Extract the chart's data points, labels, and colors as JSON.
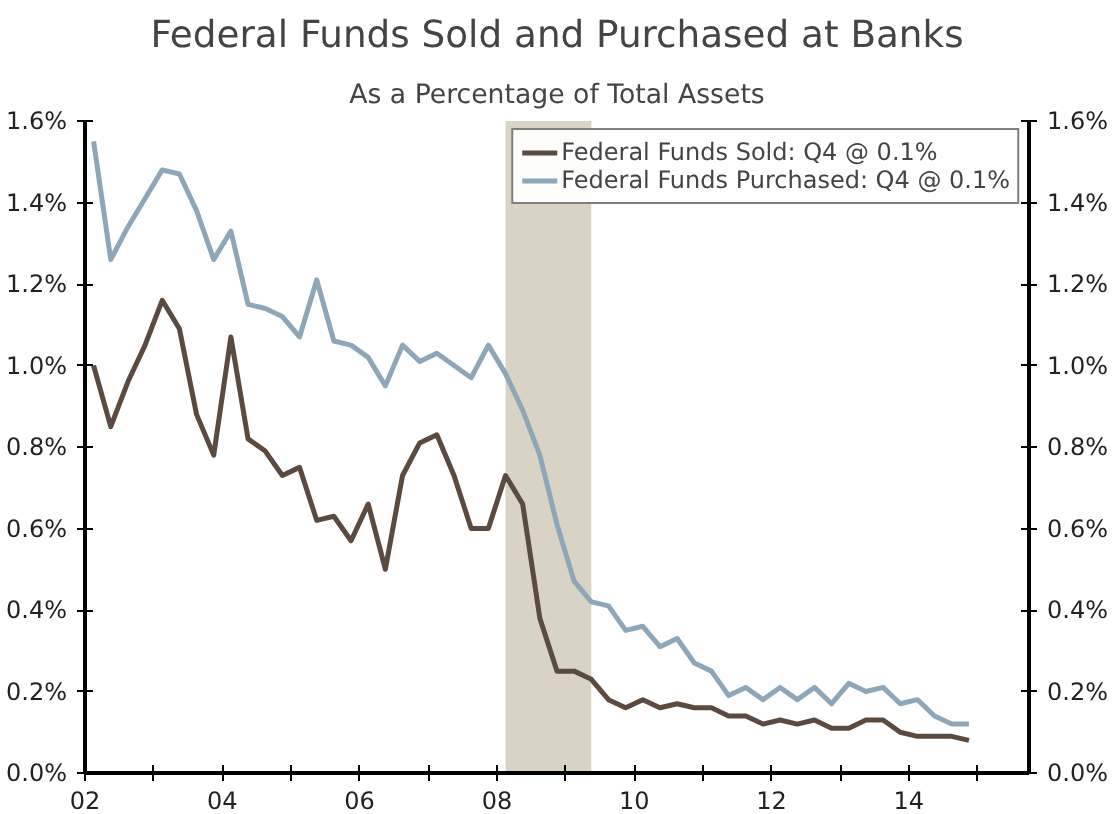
{
  "chart_data": {
    "type": "line",
    "title": "Federal Funds Sold and Purchased at Banks",
    "subtitle": "As a Percentage of Total Assets",
    "x": [
      2002.125,
      2002.375,
      2002.625,
      2002.875,
      2003.125,
      2003.375,
      2003.625,
      2003.875,
      2004.125,
      2004.375,
      2004.625,
      2004.875,
      2005.125,
      2005.375,
      2005.625,
      2005.875,
      2006.125,
      2006.375,
      2006.625,
      2006.875,
      2007.125,
      2007.375,
      2007.625,
      2007.875,
      2008.125,
      2008.375,
      2008.625,
      2008.875,
      2009.125,
      2009.375,
      2009.625,
      2009.875,
      2010.125,
      2010.375,
      2010.625,
      2010.875,
      2011.125,
      2011.375,
      2011.625,
      2011.875,
      2012.125,
      2012.375,
      2012.625,
      2012.875,
      2013.125,
      2013.375,
      2013.625,
      2013.875,
      2014.125,
      2014.375,
      2014.625,
      2014.875
    ],
    "series": [
      {
        "name": "Federal Funds Sold: Q4 @ 0.1%",
        "color": "#5b4a40",
        "values": [
          1.0,
          0.85,
          0.96,
          1.05,
          1.16,
          1.09,
          0.88,
          0.78,
          1.07,
          0.82,
          0.79,
          0.73,
          0.75,
          0.62,
          0.63,
          0.57,
          0.66,
          0.5,
          0.73,
          0.81,
          0.83,
          0.73,
          0.6,
          0.6,
          0.73,
          0.66,
          0.38,
          0.25,
          0.25,
          0.23,
          0.18,
          0.16,
          0.18,
          0.16,
          0.17,
          0.16,
          0.16,
          0.14,
          0.14,
          0.12,
          0.13,
          0.12,
          0.13,
          0.11,
          0.11,
          0.13,
          0.13,
          0.1,
          0.09,
          0.09,
          0.09,
          0.08
        ]
      },
      {
        "name": "Federal Funds Purchased: Q4 @ 0.1%",
        "color": "#8ea7b8",
        "values": [
          1.55,
          1.26,
          1.34,
          1.41,
          1.48,
          1.47,
          1.38,
          1.26,
          1.33,
          1.15,
          1.14,
          1.12,
          1.07,
          1.21,
          1.06,
          1.05,
          1.02,
          0.95,
          1.05,
          1.01,
          1.03,
          1.0,
          0.97,
          1.05,
          0.98,
          0.89,
          0.78,
          0.61,
          0.47,
          0.42,
          0.41,
          0.35,
          0.36,
          0.31,
          0.33,
          0.27,
          0.25,
          0.19,
          0.21,
          0.18,
          0.21,
          0.18,
          0.21,
          0.17,
          0.22,
          0.2,
          0.21,
          0.17,
          0.18,
          0.14,
          0.12,
          0.12
        ]
      }
    ],
    "xlim": [
      2002,
      2015.75
    ],
    "xticks": [
      {
        "value": 2002,
        "label": "02"
      },
      {
        "value": 2003,
        "label": null
      },
      {
        "value": 2004,
        "label": "04"
      },
      {
        "value": 2005,
        "label": null
      },
      {
        "value": 2006,
        "label": "06"
      },
      {
        "value": 2007,
        "label": null
      },
      {
        "value": 2008,
        "label": "08"
      },
      {
        "value": 2009,
        "label": null
      },
      {
        "value": 2010,
        "label": "10"
      },
      {
        "value": 2011,
        "label": null
      },
      {
        "value": 2012,
        "label": "12"
      },
      {
        "value": 2013,
        "label": null
      },
      {
        "value": 2014,
        "label": "14"
      },
      {
        "value": 2015,
        "label": null
      }
    ],
    "ylim": [
      0,
      1.6
    ],
    "yticks": [
      {
        "value": 0,
        "label": "0.0%"
      },
      {
        "value": 0.2,
        "label": "0.2%"
      },
      {
        "value": 0.4,
        "label": "0.4%"
      },
      {
        "value": 0.6,
        "label": "0.6%"
      },
      {
        "value": 0.8,
        "label": "0.8%"
      },
      {
        "value": 1.0,
        "label": "1.0%"
      },
      {
        "value": 1.2,
        "label": "1.2%"
      },
      {
        "value": 1.4,
        "label": "1.4%"
      },
      {
        "value": 1.6,
        "label": "1.6%"
      }
    ],
    "y2lim": [
      0,
      1.6
    ],
    "y2ticks": [
      {
        "value": 0,
        "label": "0.0%"
      },
      {
        "value": 0.2,
        "label": "0.2%"
      },
      {
        "value": 0.4,
        "label": "0.4%"
      },
      {
        "value": 0.6,
        "label": "0.6%"
      },
      {
        "value": 0.8,
        "label": "0.8%"
      },
      {
        "value": 1.0,
        "label": "1.0%"
      },
      {
        "value": 1.2,
        "label": "1.2%"
      },
      {
        "value": 1.4,
        "label": "1.4%"
      },
      {
        "value": 1.6,
        "label": "1.6%"
      }
    ],
    "bands": [
      {
        "axis": "x",
        "from": 2008.125,
        "to": 2009.375,
        "color": "#d8d3c5"
      }
    ],
    "legend": "top right",
    "line_style": "solid"
  }
}
